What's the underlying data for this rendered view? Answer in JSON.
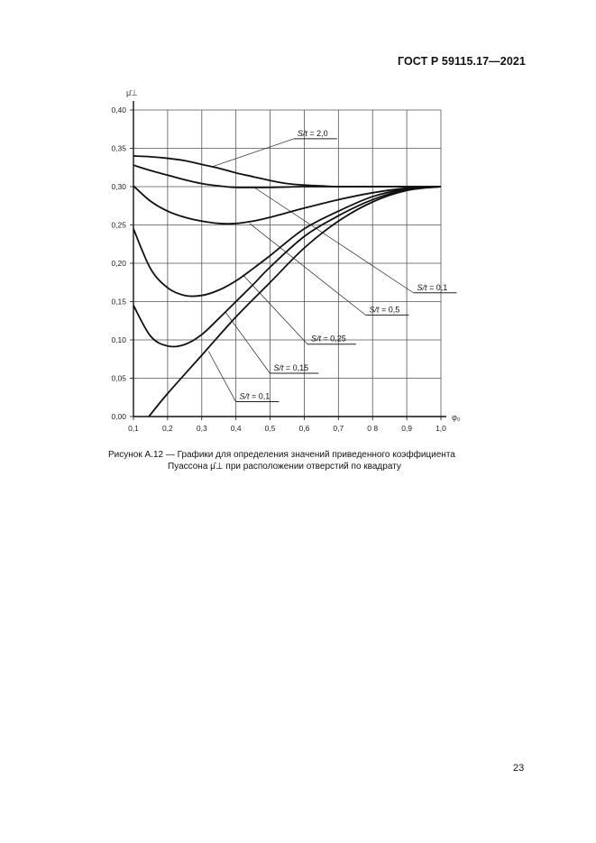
{
  "header": {
    "standard": "ГОСТ Р 59115.17—2021"
  },
  "caption": {
    "line1": "Рисунок А.12 — Графики для определения значений приведенного коэффициента",
    "line2": "Пуассона μ̄⊥ при расположении отверстий по квадрату"
  },
  "page_number": "23",
  "chart_data": {
    "type": "line",
    "title": "",
    "xlabel": "φ₀",
    "ylabel": "μ̄⊥",
    "xlim": [
      0.1,
      1.0
    ],
    "ylim": [
      0.0,
      0.4
    ],
    "grid": true,
    "x_ticks": [
      "0,1",
      "0,2",
      "0,3",
      "0,4",
      "0,5",
      "0,6",
      "0,7",
      "0 8",
      "0,9",
      "1,0"
    ],
    "y_ticks": [
      "0,00",
      "0,05",
      "0,10",
      "0,15",
      "0,20",
      "0,25",
      "0,30",
      "0,35",
      "0,40"
    ],
    "series": [
      {
        "name": "S/t = 2,0",
        "label": "S/t = 2,0",
        "x": [
          0.1,
          0.15,
          0.2,
          0.25,
          0.3,
          0.35,
          0.4,
          0.45,
          0.5,
          0.55,
          0.6,
          0.65,
          0.7,
          0.8,
          0.9,
          1.0
        ],
        "y": [
          0.34,
          0.339,
          0.337,
          0.334,
          0.329,
          0.324,
          0.318,
          0.313,
          0.308,
          0.304,
          0.302,
          0.301,
          0.3,
          0.3,
          0.3,
          0.3
        ]
      },
      {
        "name": "S/t = 0,5",
        "label": "S/t = 0,5",
        "x": [
          0.1,
          0.15,
          0.2,
          0.25,
          0.3,
          0.35,
          0.4,
          0.5,
          0.6,
          0.7,
          0.8,
          0.9,
          1.0
        ],
        "y": [
          0.328,
          0.321,
          0.315,
          0.309,
          0.304,
          0.301,
          0.299,
          0.299,
          0.3,
          0.3,
          0.3,
          0.3,
          0.3
        ]
      },
      {
        "name": "S/t = 0,25",
        "label": "S/t = 0,25",
        "x": [
          0.1,
          0.15,
          0.2,
          0.25,
          0.3,
          0.35,
          0.4,
          0.45,
          0.5,
          0.6,
          0.7,
          0.8,
          0.9,
          1.0
        ],
        "y": [
          0.301,
          0.281,
          0.268,
          0.26,
          0.255,
          0.252,
          0.252,
          0.255,
          0.26,
          0.272,
          0.283,
          0.292,
          0.298,
          0.3
        ]
      },
      {
        "name": "S/t = 0,15",
        "label": "S/t = 0,15",
        "x": [
          0.1,
          0.15,
          0.2,
          0.25,
          0.3,
          0.35,
          0.4,
          0.45,
          0.5,
          0.6,
          0.7,
          0.8,
          0.9,
          1.0
        ],
        "y": [
          0.245,
          0.193,
          0.168,
          0.158,
          0.158,
          0.165,
          0.177,
          0.193,
          0.21,
          0.245,
          0.268,
          0.287,
          0.297,
          0.3
        ]
      },
      {
        "name": "S/t = 0,1 (upper)",
        "label": "S/t = 0,1",
        "x": [
          0.1,
          0.15,
          0.2,
          0.25,
          0.3,
          0.35,
          0.4,
          0.45,
          0.5,
          0.6,
          0.7,
          0.8,
          0.9,
          1.0
        ],
        "y": [
          0.145,
          0.105,
          0.092,
          0.094,
          0.107,
          0.128,
          0.15,
          0.172,
          0.195,
          0.235,
          0.262,
          0.283,
          0.296,
          0.3
        ]
      },
      {
        "name": "S/t = 0,1 (lower)",
        "label": "S/t = 0,1",
        "x": [
          0.145,
          0.2,
          0.3,
          0.4,
          0.5,
          0.6,
          0.7,
          0.8,
          0.9,
          1.0
        ],
        "y": [
          0.0,
          0.03,
          0.08,
          0.13,
          0.175,
          0.22,
          0.255,
          0.28,
          0.295,
          0.3
        ]
      }
    ],
    "annotations": [
      {
        "text": "S/t = 2,0",
        "label_x": 0.58,
        "label_y": 0.366,
        "points_to": [
          0.33,
          0.326
        ]
      },
      {
        "text": "S/t = 0,1",
        "label_x": 0.93,
        "label_y": 0.165,
        "points_to": [
          0.45,
          0.3
        ]
      },
      {
        "text": "S/t = 0,5",
        "label_x": 0.79,
        "label_y": 0.136,
        "points_to": [
          0.44,
          0.252
        ]
      },
      {
        "text": "S/t = 0,25",
        "label_x": 0.62,
        "label_y": 0.098,
        "points_to": [
          0.42,
          0.185
        ]
      },
      {
        "text": "S/t = 0,15",
        "label_x": 0.51,
        "label_y": 0.06,
        "points_to": [
          0.37,
          0.136
        ]
      },
      {
        "text": "S/t = 0,1",
        "label_x": 0.41,
        "label_y": 0.023,
        "points_to": [
          0.32,
          0.085
        ]
      }
    ]
  }
}
